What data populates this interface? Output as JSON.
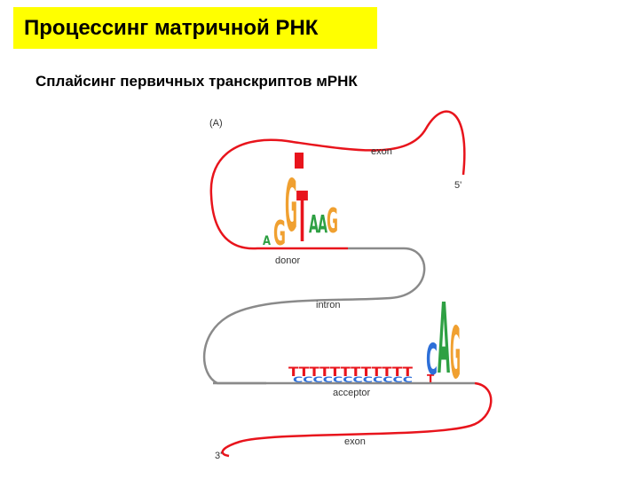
{
  "header": {
    "title": "Процессинг матричной РНК",
    "subtitle": "Сплайсинг первичных транскриптов мРНК"
  },
  "diagram": {
    "panel": "(A)",
    "exon_top": "exon",
    "five_prime": "5'",
    "donor": "donor",
    "intron": "intron",
    "acceptor": "acceptor",
    "exon_bottom": "exon",
    "three_prime": "3'",
    "donor_logo": [
      "A",
      "G",
      "G",
      "T",
      "A",
      "A",
      "G"
    ],
    "acceptor_logo": {
      "t_run": "TTTTTTTTTTTT",
      "c_run": "CCCCCCCCCCCC",
      "letters": [
        "T",
        "C",
        "A",
        "G"
      ]
    }
  }
}
